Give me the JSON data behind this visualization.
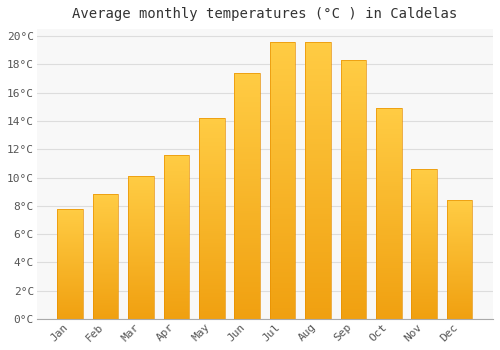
{
  "title": "Average monthly temperatures (°C ) in Caldelas",
  "months": [
    "Jan",
    "Feb",
    "Mar",
    "Apr",
    "May",
    "Jun",
    "Jul",
    "Aug",
    "Sep",
    "Oct",
    "Nov",
    "Dec"
  ],
  "values": [
    7.8,
    8.8,
    10.1,
    11.6,
    14.2,
    17.4,
    19.6,
    19.6,
    18.3,
    14.9,
    10.6,
    8.4
  ],
  "bar_color_top": "#FFC83A",
  "bar_color_bottom": "#F0A010",
  "bar_edge_color": "#E89000",
  "background_color": "#FFFFFF",
  "plot_bg_color": "#F8F8F8",
  "grid_color": "#DDDDDD",
  "ylim": [
    0,
    20.5
  ],
  "ytick_vals": [
    0,
    2,
    4,
    6,
    8,
    10,
    12,
    14,
    16,
    18,
    20
  ],
  "title_fontsize": 10,
  "tick_fontsize": 8,
  "bar_width": 0.72
}
